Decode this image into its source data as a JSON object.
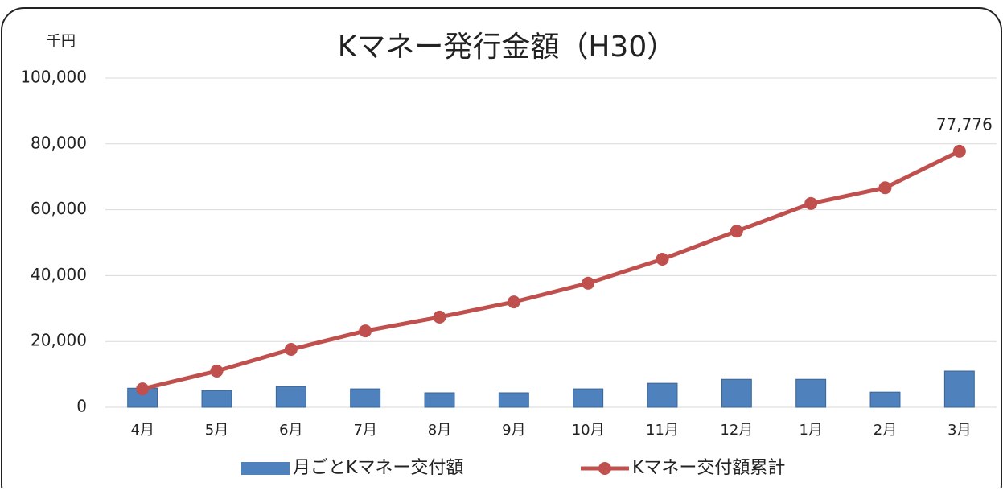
{
  "chart_data": {
    "type": "combo",
    "title": "Kマネー発行金額（H30）",
    "ylabel": "千円",
    "categories": [
      "4月",
      "5月",
      "6月",
      "7月",
      "8月",
      "9月",
      "10月",
      "11月",
      "12月",
      "1月",
      "2月",
      "3月"
    ],
    "series": [
      {
        "name": "月ごとKマネー交付額",
        "type": "bar",
        "color": "#4f81bd",
        "values": [
          5800,
          5100,
          6300,
          5600,
          4400,
          4400,
          5600,
          7300,
          8500,
          8500,
          4600,
          11000
        ]
      },
      {
        "name": "Kマネー交付額累計",
        "type": "line",
        "color": "#c0504d",
        "values": [
          5600,
          11000,
          17600,
          23200,
          27400,
          32000,
          37700,
          45000,
          53500,
          61900,
          66700,
          77776
        ],
        "value_labels": [
          null,
          null,
          null,
          null,
          null,
          null,
          null,
          null,
          null,
          null,
          null,
          "77,776"
        ]
      }
    ],
    "ylim": [
      0,
      100000
    ],
    "yticks": [
      0,
      {
        "value": 20000,
        "label": "20,000"
      },
      {
        "value": 40000,
        "label": "40,000"
      },
      {
        "value": 60000,
        "label": "60,000"
      },
      {
        "value": 80000,
        "label": "80,000"
      },
      {
        "value": 100000,
        "label": "100,000"
      }
    ],
    "grid": true,
    "legend": "bottom"
  }
}
